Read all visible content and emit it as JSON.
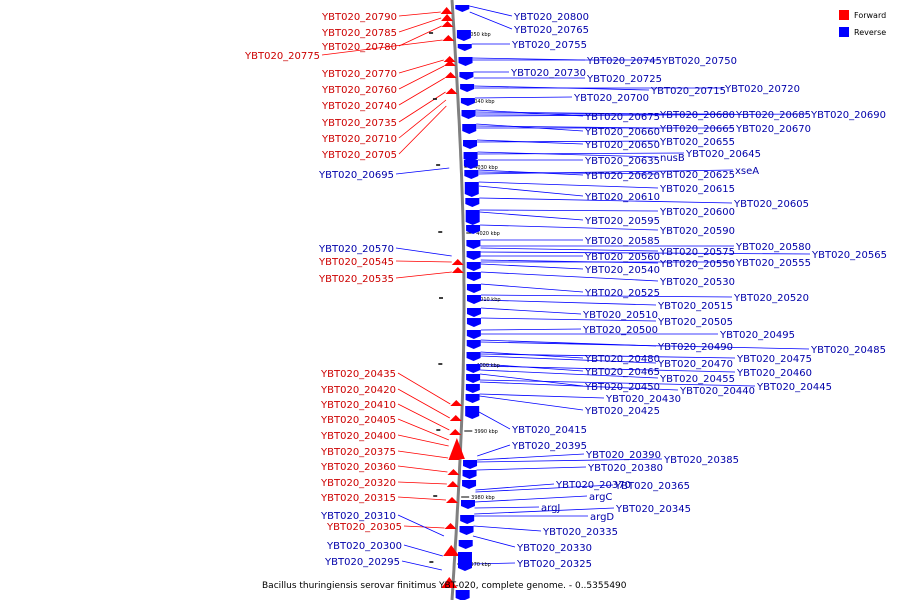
{
  "caption": "Bacillus thuringiensis serovar finitimus YBT-020, complete genome. - 0..5355490",
  "legend": [
    {
      "label": "Forward",
      "color": "#ff0000"
    },
    {
      "label": "Reverse",
      "color": "#0000ff"
    }
  ],
  "colors": {
    "forward": "#ff0000",
    "forward_label": "#cc0000",
    "reverse": "#0000ff",
    "reverse_label": "#0000aa",
    "backbone": "#808080"
  },
  "scale_ticks": [
    "4050 kbp",
    "4040 kbp",
    "4030 kbp",
    "4020 kbp",
    "4010 kbp",
    "4000 kbp",
    "3990 kbp",
    "3980 kbp",
    "3970 kbp"
  ],
  "forward_labels": [
    "YBT020_20790",
    "YBT020_20785",
    "YBT020_20780",
    "YBT020_20775",
    "YBT020_20770",
    "YBT020_20760",
    "YBT020_20740",
    "YBT020_20735",
    "YBT020_20710",
    "YBT020_20705",
    "YBT020_20545",
    "YBT020_20535",
    "YBT020_20435",
    "YBT020_20420",
    "YBT020_20410",
    "YBT020_20405",
    "YBT020_20400",
    "YBT020_20375",
    "YBT020_20360",
    "YBT020_20320",
    "YBT020_20315",
    "YBT020_20305"
  ],
  "reverse_left_labels": [
    "YBT020_20695",
    "YBT020_20570",
    "YBT020_20310",
    "YBT020_20300",
    "YBT020_20295"
  ],
  "reverse_labels": [
    "YBT020_20800",
    "YBT020_20765",
    "YBT020_20755",
    "YBT020_20745",
    "YBT020_20750",
    "YBT020_20730",
    "YBT020_20725",
    "YBT020_20715",
    "YBT020_20720",
    "YBT020_20700",
    "YBT020_20675",
    "YBT020_20680",
    "YBT020_20685",
    "YBT020_20690",
    "YBT020_20660",
    "YBT020_20665",
    "YBT020_20670",
    "YBT020_20650",
    "YBT020_20655",
    "nusB",
    "YBT020_20645",
    "YBT020_20635",
    "YBT020_20620",
    "YBT020_20625",
    "xseA",
    "YBT020_20615",
    "YBT020_20610",
    "YBT020_20605",
    "YBT020_20600",
    "YBT020_20595",
    "YBT020_20590",
    "YBT020_20585",
    "YBT020_20580",
    "YBT020_20575",
    "YBT020_20565",
    "YBT020_20560",
    "YBT020_20550",
    "YBT020_20555",
    "YBT020_20540",
    "YBT020_20530",
    "YBT020_20525",
    "YBT020_20520",
    "YBT020_20515",
    "YBT020_20510",
    "YBT020_20505",
    "YBT020_20500",
    "YBT020_20495",
    "YBT020_20490",
    "YBT020_20485",
    "YBT020_20480",
    "YBT020_20475",
    "YBT020_20470",
    "YBT020_20465",
    "YBT020_20460",
    "YBT020_20455",
    "YBT020_20450",
    "YBT020_20445",
    "YBT020_20440",
    "YBT020_20430",
    "YBT020_20425",
    "YBT020_20415",
    "YBT020_20395",
    "YBT020_20390",
    "YBT020_20385",
    "YBT020_20380",
    "YBT020_20370",
    "YBT020_20365",
    "argC",
    "argJ",
    "YBT020_20345",
    "argD",
    "YBT020_20335",
    "YBT020_20330",
    "YBT020_20325"
  ]
}
